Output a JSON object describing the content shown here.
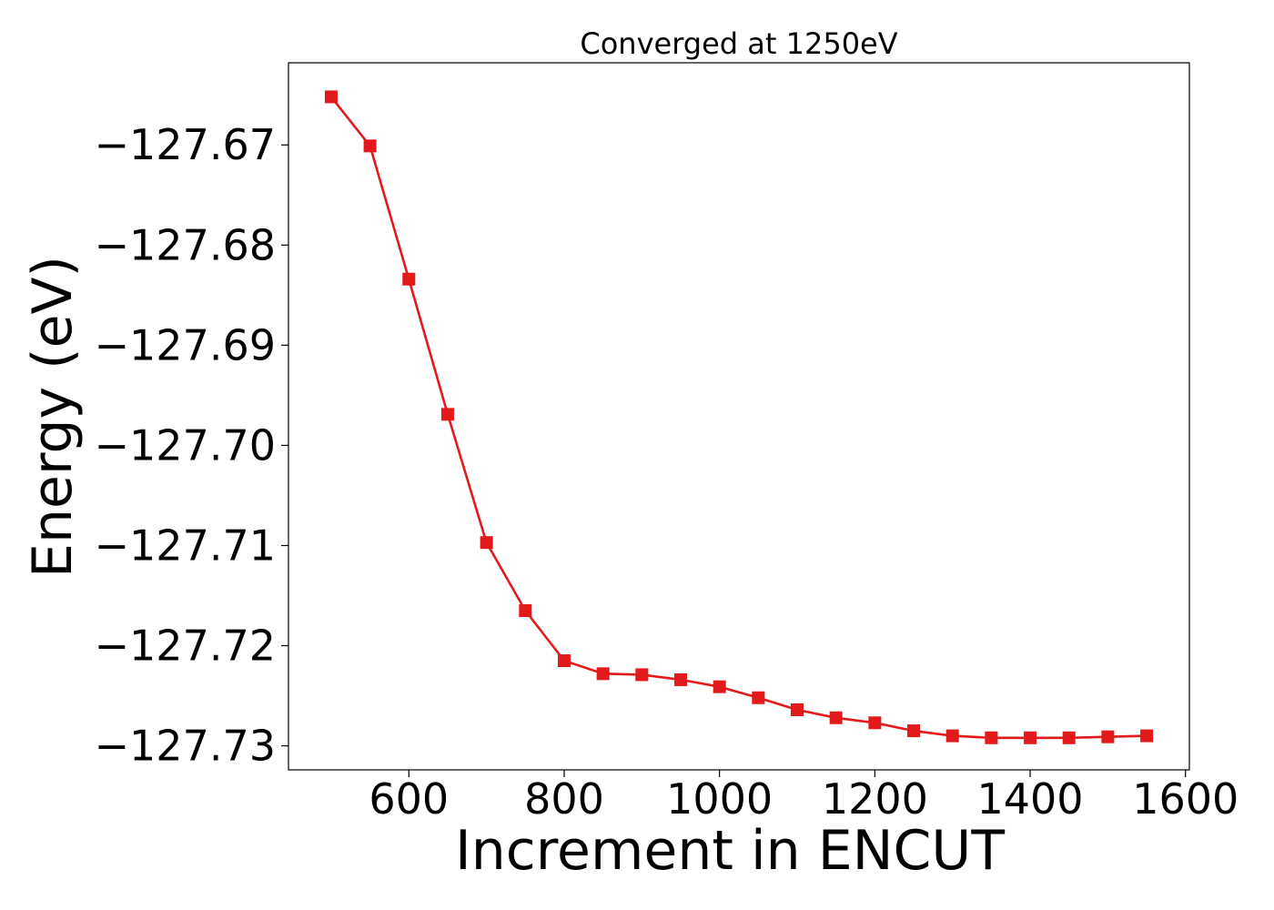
{
  "chart_data": {
    "type": "line",
    "title": "Converged at 1250eV",
    "xlabel": "Increment in ENCUT",
    "ylabel": "Energy (eV)",
    "xlim": [
      445,
      1605
    ],
    "ylim": [
      -127.7324,
      -127.6618
    ],
    "xticks": [
      600,
      800,
      1000,
      1200,
      1400,
      1600
    ],
    "xtick_labels": [
      "600",
      "800",
      "1000",
      "1200",
      "1400",
      "1600"
    ],
    "yticks": [
      -127.67,
      -127.68,
      -127.69,
      -127.7,
      -127.71,
      -127.72,
      -127.73
    ],
    "ytick_labels": [
      "−127.67",
      "−127.68",
      "−127.69",
      "−127.70",
      "−127.71",
      "−127.72",
      "−127.73"
    ],
    "grid": false,
    "series": [
      {
        "color": "#e31a1c",
        "marker": "square",
        "x": [
          500,
          550,
          600,
          650,
          700,
          750,
          800,
          850,
          900,
          950,
          1000,
          1050,
          1100,
          1150,
          1200,
          1250,
          1300,
          1350,
          1400,
          1450,
          1500,
          1550
        ],
        "y": [
          -127.6652,
          -127.6701,
          -127.6834,
          -127.6969,
          -127.7097,
          -127.7165,
          -127.7215,
          -127.7228,
          -127.7229,
          -127.7234,
          -127.7241,
          -127.7252,
          -127.7264,
          -127.7272,
          -127.7277,
          -127.7285,
          -127.729,
          -127.7292,
          -127.7292,
          -127.7292,
          -127.7291,
          -127.729
        ]
      }
    ]
  }
}
